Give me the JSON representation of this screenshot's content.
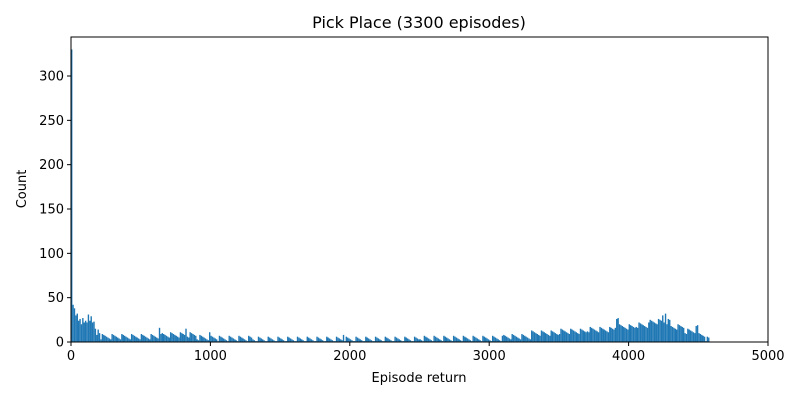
{
  "chart_data": {
    "type": "bar",
    "title": "Pick Place (3300 episodes)",
    "xlabel": "Episode return",
    "ylabel": "Count",
    "xlim": [
      0,
      5000
    ],
    "ylim": [
      0,
      344
    ],
    "x_ticks": [
      "0",
      "1000",
      "2000",
      "3000",
      "4000",
      "5000"
    ],
    "y_ticks": [
      "0",
      "50",
      "100",
      "150",
      "200",
      "250",
      "300"
    ],
    "grid": false,
    "legend": "none",
    "bar_color": "#1f77b4",
    "bin_width": 10,
    "bins": [
      {
        "x": 0,
        "count": 330
      },
      {
        "x": 10,
        "count": 42
      },
      {
        "x": 20,
        "count": 38
      },
      {
        "x": 30,
        "count": 30
      },
      {
        "x": 40,
        "count": 32
      },
      {
        "x": 50,
        "count": 24
      },
      {
        "x": 60,
        "count": 26
      },
      {
        "x": 70,
        "count": 20
      },
      {
        "x": 80,
        "count": 27
      },
      {
        "x": 90,
        "count": 22
      },
      {
        "x": 100,
        "count": 24
      },
      {
        "x": 110,
        "count": 22
      },
      {
        "x": 120,
        "count": 31
      },
      {
        "x": 130,
        "count": 24
      },
      {
        "x": 140,
        "count": 29
      },
      {
        "x": 150,
        "count": 22
      },
      {
        "x": 160,
        "count": 23
      },
      {
        "x": 170,
        "count": 15
      },
      {
        "x": 180,
        "count": 8
      },
      {
        "x": 190,
        "count": 14
      },
      {
        "x": 200,
        "count": 10
      }
    ],
    "regions": [
      {
        "from": 200,
        "to": 500,
        "count": 6
      },
      {
        "from": 500,
        "to": 650,
        "count": 6
      },
      {
        "from": 650,
        "to": 900,
        "count": 8
      },
      {
        "from": 900,
        "to": 1050,
        "count": 5
      },
      {
        "from": 1050,
        "to": 1300,
        "count": 4
      },
      {
        "from": 1300,
        "to": 1600,
        "count": 3
      },
      {
        "from": 1600,
        "to": 1900,
        "count": 3
      },
      {
        "from": 1900,
        "to": 2200,
        "count": 3
      },
      {
        "from": 2200,
        "to": 2500,
        "count": 3
      },
      {
        "from": 2500,
        "to": 2800,
        "count": 4
      },
      {
        "from": 2800,
        "to": 3100,
        "count": 4
      },
      {
        "from": 3100,
        "to": 3300,
        "count": 6
      },
      {
        "from": 3300,
        "to": 3500,
        "count": 10
      },
      {
        "from": 3500,
        "to": 3700,
        "count": 12
      },
      {
        "from": 3700,
        "to": 3900,
        "count": 14
      },
      {
        "from": 3900,
        "to": 4050,
        "count": 17
      },
      {
        "from": 4050,
        "to": 4150,
        "count": 19
      },
      {
        "from": 4150,
        "to": 4300,
        "count": 23
      },
      {
        "from": 4300,
        "to": 4400,
        "count": 17
      },
      {
        "from": 4400,
        "to": 4500,
        "count": 12
      },
      {
        "from": 4500,
        "to": 4550,
        "count": 8
      },
      {
        "from": 4550,
        "to": 4580,
        "count": 3
      }
    ],
    "spikes": [
      {
        "x": 630,
        "count": 16
      },
      {
        "x": 820,
        "count": 15
      },
      {
        "x": 990,
        "count": 11
      },
      {
        "x": 1950,
        "count": 8
      },
      {
        "x": 3910,
        "count": 26
      },
      {
        "x": 3920,
        "count": 27
      },
      {
        "x": 4240,
        "count": 30
      },
      {
        "x": 4260,
        "count": 32
      },
      {
        "x": 4480,
        "count": 18
      },
      {
        "x": 4490,
        "count": 19
      }
    ]
  }
}
